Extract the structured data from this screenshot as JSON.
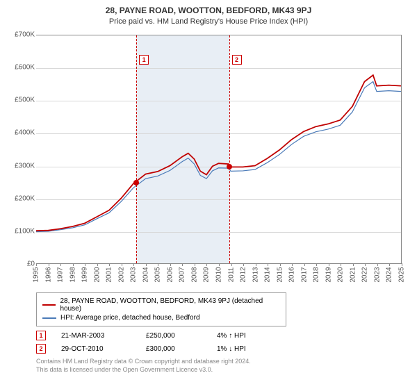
{
  "title": "28, PAYNE ROAD, WOOTTON, BEDFORD, MK43 9PJ",
  "subtitle": "Price paid vs. HM Land Registry's House Price Index (HPI)",
  "chart": {
    "type": "line",
    "background_color": "#ffffff",
    "grid_color": "#d8d8d8",
    "axis_color": "#888888",
    "label_fontsize": 10,
    "label_color": "#555555",
    "shade_color": "#e8eef5",
    "ylim": [
      0,
      700000
    ],
    "ytick_step": 100000,
    "yticks": [
      "£0",
      "£100K",
      "£200K",
      "£300K",
      "£400K",
      "£500K",
      "£600K",
      "£700K"
    ],
    "xrange": [
      1995,
      2025
    ],
    "xticks": [
      1995,
      1996,
      1997,
      1998,
      1999,
      2000,
      2001,
      2002,
      2003,
      2004,
      2005,
      2006,
      2007,
      2008,
      2009,
      2010,
      2011,
      2012,
      2013,
      2014,
      2015,
      2016,
      2017,
      2018,
      2019,
      2020,
      2021,
      2022,
      2023,
      2024,
      2025
    ],
    "shade_from_year": 2003.22,
    "shade_to_year": 2010.83,
    "series": [
      {
        "name": "red",
        "color": "#c00000",
        "width": 1.8,
        "points": [
          [
            1995,
            100000
          ],
          [
            1996,
            101000
          ],
          [
            1997,
            106000
          ],
          [
            1998,
            113000
          ],
          [
            1999,
            123000
          ],
          [
            2000,
            143000
          ],
          [
            2001,
            163000
          ],
          [
            2002,
            200000
          ],
          [
            2003,
            245000
          ],
          [
            2004,
            274000
          ],
          [
            2005,
            282000
          ],
          [
            2006,
            300000
          ],
          [
            2007,
            327000
          ],
          [
            2007.5,
            338000
          ],
          [
            2008,
            320000
          ],
          [
            2008.5,
            283000
          ],
          [
            2009,
            272000
          ],
          [
            2009.5,
            298000
          ],
          [
            2010,
            307000
          ],
          [
            2010.83,
            305000
          ],
          [
            2011,
            296000
          ],
          [
            2012,
            296000
          ],
          [
            2013,
            300000
          ],
          [
            2014,
            322000
          ],
          [
            2015,
            348000
          ],
          [
            2016,
            380000
          ],
          [
            2017,
            405000
          ],
          [
            2018,
            420000
          ],
          [
            2019,
            428000
          ],
          [
            2020,
            440000
          ],
          [
            2021,
            482000
          ],
          [
            2022,
            558000
          ],
          [
            2022.7,
            578000
          ],
          [
            2023,
            545000
          ],
          [
            2024,
            547000
          ],
          [
            2025,
            545000
          ]
        ]
      },
      {
        "name": "blue",
        "color": "#4a7ab8",
        "width": 1.2,
        "points": [
          [
            1995,
            97000
          ],
          [
            1996,
            98000
          ],
          [
            1997,
            103000
          ],
          [
            1998,
            109000
          ],
          [
            1999,
            118000
          ],
          [
            2000,
            137000
          ],
          [
            2001,
            155000
          ],
          [
            2002,
            190000
          ],
          [
            2003,
            232000
          ],
          [
            2004,
            260000
          ],
          [
            2005,
            268000
          ],
          [
            2006,
            285000
          ],
          [
            2007,
            312000
          ],
          [
            2007.5,
            323000
          ],
          [
            2008,
            305000
          ],
          [
            2008.5,
            270000
          ],
          [
            2009,
            260000
          ],
          [
            2009.5,
            284000
          ],
          [
            2010,
            293000
          ],
          [
            2010.83,
            292000
          ],
          [
            2011,
            283000
          ],
          [
            2012,
            284000
          ],
          [
            2013,
            288000
          ],
          [
            2014,
            309000
          ],
          [
            2015,
            334000
          ],
          [
            2016,
            365000
          ],
          [
            2017,
            390000
          ],
          [
            2018,
            404000
          ],
          [
            2019,
            412000
          ],
          [
            2020,
            424000
          ],
          [
            2021,
            465000
          ],
          [
            2022,
            539000
          ],
          [
            2022.7,
            558000
          ],
          [
            2023,
            528000
          ],
          [
            2024,
            530000
          ],
          [
            2025,
            528000
          ]
        ]
      }
    ],
    "markers": [
      {
        "num": "1",
        "year": 2003.22,
        "value": 250000
      },
      {
        "num": "2",
        "year": 2010.83,
        "value": 300000
      }
    ]
  },
  "legend": {
    "items": [
      {
        "color": "#c00000",
        "label": "28, PAYNE ROAD, WOOTTON, BEDFORD, MK43 9PJ (detached house)"
      },
      {
        "color": "#4a7ab8",
        "label": "HPI: Average price, detached house, Bedford"
      }
    ]
  },
  "events": [
    {
      "num": "1",
      "date": "21-MAR-2003",
      "price": "£250,000",
      "delta": "4% ↑ HPI"
    },
    {
      "num": "2",
      "date": "29-OCT-2010",
      "price": "£300,000",
      "delta": "1% ↓ HPI"
    }
  ],
  "footer": {
    "line1": "Contains HM Land Registry data © Crown copyright and database right 2024.",
    "line2": "This data is licensed under the Open Government Licence v3.0."
  }
}
